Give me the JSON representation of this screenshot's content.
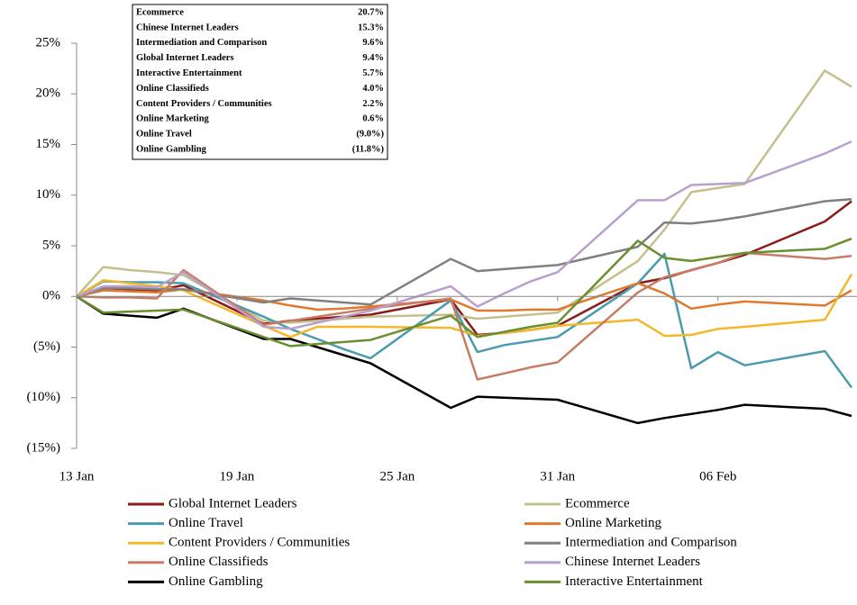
{
  "chart_data": {
    "type": "line",
    "table": [
      [
        "Ecommerce",
        "20.7%"
      ],
      [
        "Chinese Internet Leaders",
        "15.3%"
      ],
      [
        "Intermediation and Comparison",
        "9.6%"
      ],
      [
        "Global Internet Leaders",
        "9.4%"
      ],
      [
        "Interactive Entertainment",
        "5.7%"
      ],
      [
        "Online Classifieds",
        "4.0%"
      ],
      [
        "Content Providers / Communities",
        "2.2%"
      ],
      [
        "Online Marketing",
        "0.6%"
      ],
      [
        "Online Travel",
        "(9.0%)"
      ],
      [
        "Online Gambling",
        "(11.8%)"
      ]
    ],
    "x": [
      "13 Jan",
      "14 Jan",
      "15 Jan",
      "16 Jan",
      "17 Jan",
      "20 Jan",
      "21 Jan",
      "22 Jan",
      "23 Jan",
      "24 Jan",
      "27 Jan",
      "28 Jan",
      "29 Jan",
      "30 Jan",
      "31 Jan",
      "03 Feb",
      "04 Feb",
      "05 Feb",
      "06 Feb",
      "07 Feb",
      "10 Feb",
      "11 Feb"
    ],
    "xlim": [
      "13 Jan",
      "11 Feb"
    ],
    "xticks": [
      "13 Jan",
      "19 Jan",
      "25 Jan",
      "31 Jan",
      "06 Feb"
    ],
    "ylim": [
      -15,
      25
    ],
    "yticks": [
      {
        "value": 25,
        "label": "25%"
      },
      {
        "value": 20,
        "label": "20%"
      },
      {
        "value": 15,
        "label": "15%"
      },
      {
        "value": 10,
        "label": "10%"
      },
      {
        "value": 5,
        "label": "5%"
      },
      {
        "value": 0,
        "label": "0%"
      },
      {
        "value": -5,
        "label": "(5%)"
      },
      {
        "value": -10,
        "label": "(10%)"
      },
      {
        "value": -15,
        "label": "(15%)"
      }
    ],
    "series": [
      {
        "name": "Global Internet Leaders",
        "color": "#8b1a1a",
        "values": [
          0,
          0.8,
          0.7,
          0.6,
          1.1,
          -2.7,
          -2.4,
          -2.2,
          -2.0,
          -1.8,
          -0.3,
          -3.8,
          -3.6,
          -3.3,
          -2.9,
          1.3,
          1.8,
          2.6,
          3.3,
          4.1,
          7.4,
          9.4
        ]
      },
      {
        "name": "Ecommerce",
        "color": "#c4c08d",
        "values": [
          0,
          2.9,
          2.6,
          2.4,
          2.1,
          -2.4,
          -2.6,
          -2.4,
          -2.2,
          -2.0,
          -1.8,
          -2.2,
          -2.0,
          -1.8,
          -1.6,
          3.5,
          6.6,
          10.3,
          10.7,
          11.1,
          22.3,
          20.7
        ]
      },
      {
        "name": "Online Travel",
        "color": "#4a9bb0",
        "values": [
          0,
          1.5,
          1.4,
          1.4,
          1.3,
          -2.0,
          -3.2,
          -4.2,
          -5.2,
          -6.1,
          -0.4,
          -5.5,
          -4.8,
          -4.4,
          -4.0,
          1.3,
          4.2,
          -7.1,
          -5.5,
          -6.8,
          -5.4,
          -9.0
        ]
      },
      {
        "name": "Online Marketing",
        "color": "#e2782b",
        "values": [
          0,
          0.6,
          0.5,
          0.4,
          0.7,
          -0.4,
          -0.9,
          -1.3,
          -1.2,
          -1.0,
          -0.3,
          -1.4,
          -1.4,
          -1.3,
          -1.3,
          1.3,
          0.3,
          -1.2,
          -0.8,
          -0.5,
          -0.9,
          0.6
        ]
      },
      {
        "name": "Content Providers / Communities",
        "color": "#f2b82a",
        "values": [
          0,
          1.6,
          1.3,
          1.0,
          0.6,
          -2.9,
          -4.0,
          -3.0,
          -3.0,
          -3.0,
          -3.1,
          -3.9,
          -3.6,
          -3.3,
          -2.9,
          -2.3,
          -3.9,
          -3.8,
          -3.2,
          -3.0,
          -2.3,
          2.2
        ]
      },
      {
        "name": "Intermediation and Comparison",
        "color": "#808080",
        "values": [
          0,
          0.8,
          0.8,
          0.7,
          0.7,
          -0.6,
          -0.2,
          -0.4,
          -0.6,
          -0.8,
          3.7,
          2.5,
          2.7,
          2.9,
          3.1,
          4.9,
          7.3,
          7.2,
          7.5,
          7.9,
          9.4,
          9.6
        ]
      },
      {
        "name": "Online Classifieds",
        "color": "#c87c64",
        "values": [
          0,
          -0.1,
          -0.1,
          -0.2,
          2.6,
          -2.8,
          -2.4,
          -2.0,
          -1.6,
          -1.2,
          -0.2,
          -8.2,
          -7.6,
          -7.0,
          -6.5,
          0.4,
          1.9,
          2.6,
          3.3,
          4.3,
          3.7,
          4.0
        ]
      },
      {
        "name": "Chinese Internet Leaders",
        "color": "#b9a0cc",
        "values": [
          0,
          1.0,
          1.0,
          0.9,
          2.4,
          -3.0,
          -3.2,
          -2.6,
          -2.0,
          -1.4,
          1.0,
          -1.0,
          0.3,
          1.5,
          2.4,
          9.5,
          9.5,
          11.0,
          11.1,
          11.2,
          14.1,
          15.3
        ]
      },
      {
        "name": "Online Gambling",
        "color": "#000000",
        "values": [
          0,
          -1.7,
          -1.9,
          -2.1,
          -1.2,
          -4.2,
          -4.2,
          -5.0,
          -5.8,
          -6.6,
          -11.0,
          -9.9,
          -10.0,
          -10.1,
          -10.2,
          -12.5,
          -12.0,
          -11.6,
          -11.2,
          -10.7,
          -11.1,
          -11.8
        ]
      },
      {
        "name": "Interactive Entertainment",
        "color": "#6b8e2f",
        "values": [
          0,
          -1.6,
          -1.5,
          -1.4,
          -1.3,
          -4.0,
          -4.9,
          -4.7,
          -4.5,
          -4.3,
          -1.9,
          -4.0,
          -3.5,
          -3.0,
          -2.6,
          5.5,
          3.8,
          3.5,
          3.9,
          4.3,
          4.7,
          5.7
        ]
      }
    ]
  }
}
